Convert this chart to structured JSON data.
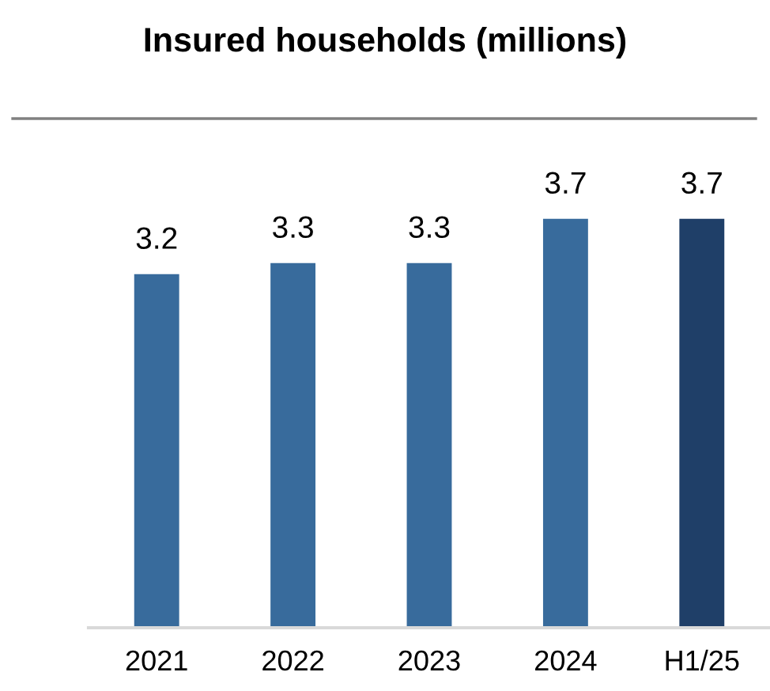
{
  "chart_data": {
    "type": "bar",
    "title": "Insured households (millions)",
    "categories": [
      "2021",
      "2022",
      "2023",
      "2024",
      "H1/25"
    ],
    "values": [
      3.2,
      3.3,
      3.3,
      3.7,
      3.7
    ],
    "colors": [
      "#386b9c",
      "#386b9c",
      "#386b9c",
      "#386b9c",
      "#1f3f68"
    ],
    "data_labels": true,
    "tick_labels": "x",
    "grid": false,
    "legend": false
  }
}
